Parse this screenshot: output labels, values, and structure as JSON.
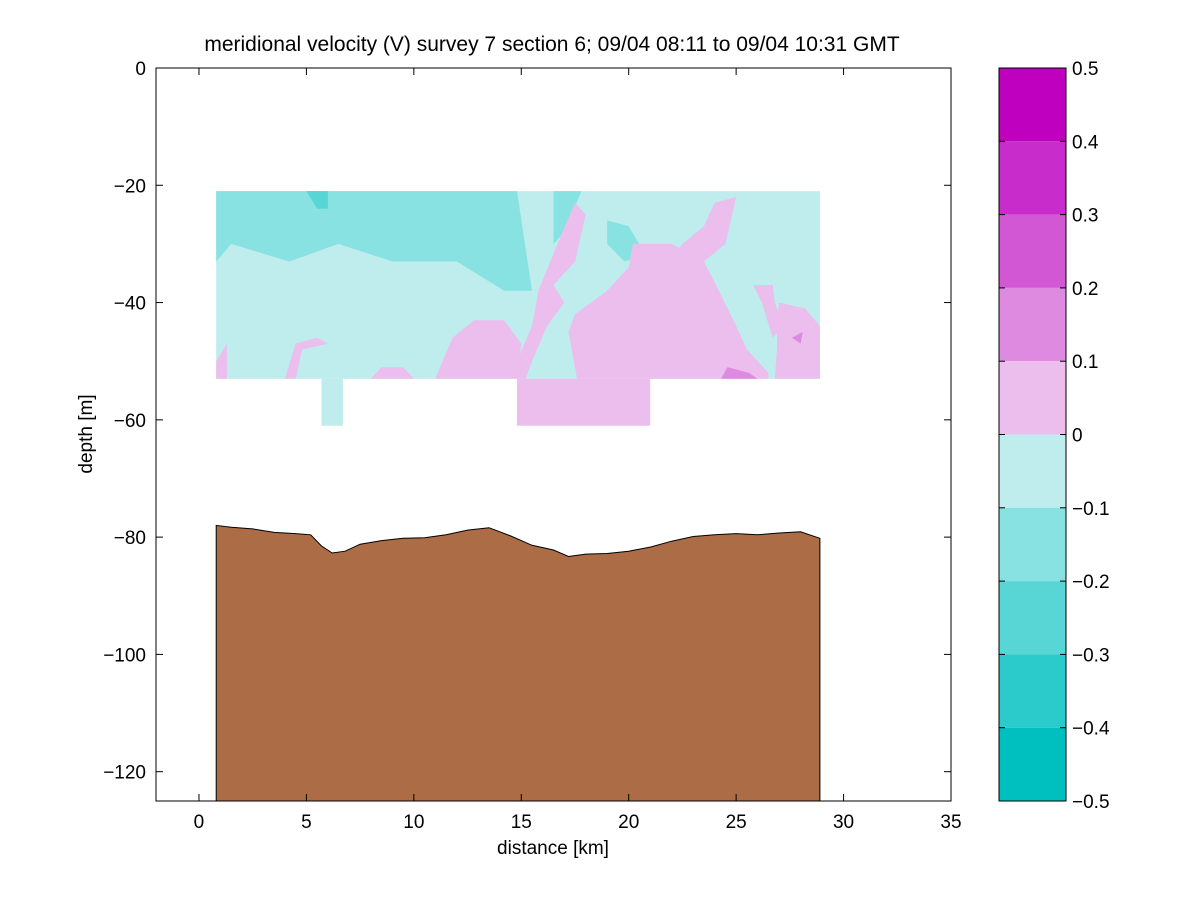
{
  "chart_data": {
    "type": "heatmap",
    "title": "meridional velocity (V) survey 7 section 6; 09/04 08:11 to 09/04 10:31 GMT",
    "xlabel": "distance [km]",
    "ylabel": "depth [m]",
    "xlim": [
      -2,
      35
    ],
    "ylim": [
      -125,
      0
    ],
    "xticks": [
      0,
      5,
      10,
      15,
      20,
      25,
      30,
      35
    ],
    "yticks": [
      0,
      -20,
      -40,
      -60,
      -80,
      -100,
      -120
    ],
    "grid": false,
    "colorbar": {
      "range": [
        -0.5,
        0.5
      ],
      "ticks": [
        0.5,
        0.4,
        0.3,
        0.2,
        0.1,
        0,
        -0.1,
        -0.2,
        -0.3,
        -0.4,
        -0.5
      ],
      "bins": [
        {
          "lo": 0.4,
          "hi": 0.5,
          "color": "#bf00bf"
        },
        {
          "lo": 0.3,
          "hi": 0.4,
          "color": "#c82ccb"
        },
        {
          "lo": 0.2,
          "hi": 0.3,
          "color": "#d157d5"
        },
        {
          "lo": 0.1,
          "hi": 0.2,
          "color": "#df8ae1"
        },
        {
          "lo": 0.0,
          "hi": 0.1,
          "color": "#ebbeed"
        },
        {
          "lo": -0.1,
          "hi": 0.0,
          "color": "#bfecec"
        },
        {
          "lo": -0.2,
          "hi": -0.1,
          "color": "#88e2e2"
        },
        {
          "lo": -0.3,
          "hi": -0.2,
          "color": "#58d6d6"
        },
        {
          "lo": -0.4,
          "hi": -0.3,
          "color": "#2ccbcb"
        },
        {
          "lo": -0.5,
          "hi": -0.4,
          "color": "#00bfbf"
        }
      ]
    },
    "data_extent": {
      "x": [
        0.8,
        28.9
      ],
      "depth": [
        -21,
        -53
      ]
    },
    "deep_bins": [
      {
        "x": [
          5.7,
          6.7
        ],
        "depth": [
          -53,
          -61
        ],
        "v_bin": -0.05
      },
      {
        "x": [
          14.8,
          21.0
        ],
        "depth": [
          -53,
          -61
        ],
        "v_bin": 0.05
      }
    ],
    "regions": [
      {
        "v_bin": -0.15,
        "poly": [
          [
            0.8,
            -21
          ],
          [
            14.8,
            -21
          ],
          [
            15.5,
            -38
          ],
          [
            14.2,
            -38
          ],
          [
            12,
            -33
          ],
          [
            9,
            -33
          ],
          [
            6.5,
            -30
          ],
          [
            4.2,
            -33
          ],
          [
            1.5,
            -30
          ],
          [
            0.8,
            -33
          ]
        ]
      },
      {
        "v_bin": -0.15,
        "poly": [
          [
            16.5,
            -21
          ],
          [
            17.8,
            -21
          ],
          [
            17,
            -28
          ],
          [
            16.5,
            -30
          ]
        ]
      },
      {
        "v_bin": -0.15,
        "poly": [
          [
            19,
            -26
          ],
          [
            20,
            -27
          ],
          [
            20.8,
            -32
          ],
          [
            19.8,
            -33
          ],
          [
            19,
            -30
          ]
        ]
      },
      {
        "v_bin": -0.25,
        "poly": [
          [
            5,
            -21
          ],
          [
            6,
            -21
          ],
          [
            6,
            -24
          ],
          [
            5.5,
            -24
          ]
        ]
      },
      {
        "v_bin": 0.05,
        "poly": [
          [
            24,
            -23
          ],
          [
            25,
            -22
          ],
          [
            24.5,
            -30
          ],
          [
            23.5,
            -33
          ],
          [
            22.5,
            -36
          ],
          [
            21.5,
            -42
          ],
          [
            20.5,
            -40
          ],
          [
            21.5,
            -35
          ],
          [
            22.5,
            -30
          ],
          [
            23.5,
            -27
          ]
        ]
      },
      {
        "v_bin": 0.05,
        "poly": [
          [
            20.2,
            -30
          ],
          [
            22,
            -30
          ],
          [
            23.5,
            -33
          ],
          [
            24.2,
            -38
          ],
          [
            25,
            -44
          ],
          [
            25.5,
            -48
          ],
          [
            26.5,
            -52
          ],
          [
            26.5,
            -53
          ],
          [
            17.6,
            -53
          ],
          [
            17.2,
            -45
          ],
          [
            17.5,
            -42
          ],
          [
            19,
            -38
          ],
          [
            20,
            -34
          ]
        ]
      },
      {
        "v_bin": 0.05,
        "poly": [
          [
            17.5,
            -23
          ],
          [
            18,
            -25
          ],
          [
            17.5,
            -33
          ],
          [
            16.5,
            -37
          ],
          [
            17,
            -40
          ],
          [
            16.2,
            -44
          ],
          [
            15.5,
            -50
          ],
          [
            15.2,
            -53
          ],
          [
            14.8,
            -53
          ],
          [
            14.8,
            -50
          ],
          [
            15.5,
            -44
          ],
          [
            15.8,
            -38
          ],
          [
            16.8,
            -29
          ]
        ]
      },
      {
        "v_bin": 0.05,
        "poly": [
          [
            11,
            -53
          ],
          [
            11.8,
            -46
          ],
          [
            12.8,
            -43
          ],
          [
            14.2,
            -43
          ],
          [
            15,
            -47
          ],
          [
            14.8,
            -53
          ]
        ]
      },
      {
        "v_bin": 0.05,
        "poly": [
          [
            8,
            -53
          ],
          [
            8.5,
            -51
          ],
          [
            9.5,
            -51
          ],
          [
            10,
            -53
          ]
        ]
      },
      {
        "v_bin": 0.05,
        "poly": [
          [
            25.8,
            -37
          ],
          [
            26.2,
            -40
          ],
          [
            26.7,
            -46
          ],
          [
            27.2,
            -44
          ],
          [
            26.8,
            -40
          ],
          [
            26.7,
            -37
          ]
        ]
      },
      {
        "v_bin": 0.05,
        "poly": [
          [
            27,
            -40
          ],
          [
            28.2,
            -41
          ],
          [
            28.9,
            -44
          ],
          [
            28.9,
            -53
          ],
          [
            26.8,
            -53
          ],
          [
            26.9,
            -48
          ],
          [
            26.9,
            -43
          ]
        ]
      },
      {
        "v_bin": 0.05,
        "poly": [
          [
            0.8,
            -50
          ],
          [
            1.3,
            -47
          ],
          [
            1.3,
            -53
          ],
          [
            0.8,
            -53
          ]
        ]
      },
      {
        "v_bin": 0.05,
        "poly": [
          [
            4,
            -53
          ],
          [
            4.5,
            -47
          ],
          [
            5.5,
            -46
          ],
          [
            6,
            -47
          ],
          [
            4.8,
            -48
          ],
          [
            4.5,
            -53
          ]
        ]
      },
      {
        "v_bin": 0.15,
        "poly": [
          [
            24.3,
            -53
          ],
          [
            24.6,
            -51
          ],
          [
            25.6,
            -52
          ],
          [
            26,
            -53
          ]
        ]
      },
      {
        "v_bin": 0.15,
        "poly": [
          [
            27.6,
            -46
          ],
          [
            28.1,
            -45
          ],
          [
            28,
            -47
          ]
        ]
      }
    ],
    "seafloor": {
      "color": "#ab6c46",
      "x": [
        0.8,
        1.5,
        2.5,
        3.5,
        4.5,
        5.2,
        5.7,
        6.2,
        6.8,
        7.5,
        8.5,
        9.5,
        10.5,
        11.5,
        12.5,
        13.5,
        14.5,
        15.5,
        16.5,
        17.2,
        18,
        19,
        20,
        21,
        22,
        23,
        24,
        25,
        26,
        27,
        28,
        28.9
      ],
      "depth": [
        -78,
        -78.3,
        -78.6,
        -79.2,
        -79.4,
        -79.6,
        -81.5,
        -82.7,
        -82.4,
        -81.2,
        -80.6,
        -80.2,
        -80.1,
        -79.6,
        -78.8,
        -78.4,
        -79.8,
        -81.4,
        -82.2,
        -83.3,
        -82.9,
        -82.8,
        -82.4,
        -81.7,
        -80.7,
        -79.9,
        -79.6,
        -79.4,
        -79.6,
        -79.3,
        -79.1,
        -80.2
      ]
    }
  }
}
